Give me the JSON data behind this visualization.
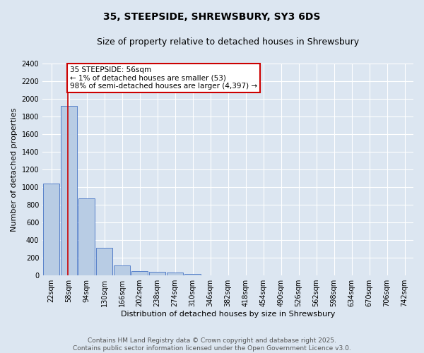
{
  "title": "35, STEEPSIDE, SHREWSBURY, SY3 6DS",
  "subtitle": "Size of property relative to detached houses in Shrewsbury",
  "xlabel": "Distribution of detached houses by size in Shrewsbury",
  "ylabel": "Number of detached properties",
  "bin_labels": [
    "22sqm",
    "58sqm",
    "94sqm",
    "130sqm",
    "166sqm",
    "202sqm",
    "238sqm",
    "274sqm",
    "310sqm",
    "346sqm",
    "382sqm",
    "418sqm",
    "454sqm",
    "490sqm",
    "526sqm",
    "562sqm",
    "598sqm",
    "634sqm",
    "670sqm",
    "706sqm",
    "742sqm"
  ],
  "bar_values": [
    1040,
    1920,
    870,
    315,
    115,
    50,
    42,
    30,
    20,
    0,
    0,
    0,
    0,
    0,
    0,
    0,
    0,
    0,
    0,
    0,
    0
  ],
  "bar_color": "#b8cce4",
  "bar_edge_color": "#4472c4",
  "background_color": "#dce6f1",
  "plot_bg_color": "#dce6f1",
  "annotation_title": "35 STEEPSIDE: 56sqm",
  "annotation_line1": "← 1% of detached houses are smaller (53)",
  "annotation_line2": "98% of semi-detached houses are larger (4,397) →",
  "annotation_box_color": "#ffffff",
  "annotation_border_color": "#cc0000",
  "vline_color": "#cc0000",
  "vline_x": 0.93,
  "ylim": [
    0,
    2400
  ],
  "yticks": [
    0,
    200,
    400,
    600,
    800,
    1000,
    1200,
    1400,
    1600,
    1800,
    2000,
    2200,
    2400
  ],
  "footer_line1": "Contains HM Land Registry data © Crown copyright and database right 2025.",
  "footer_line2": "Contains public sector information licensed under the Open Government Licence v3.0.",
  "title_fontsize": 10,
  "subtitle_fontsize": 9,
  "axis_label_fontsize": 8,
  "tick_fontsize": 7,
  "annotation_fontsize": 7.5,
  "footer_fontsize": 6.5
}
